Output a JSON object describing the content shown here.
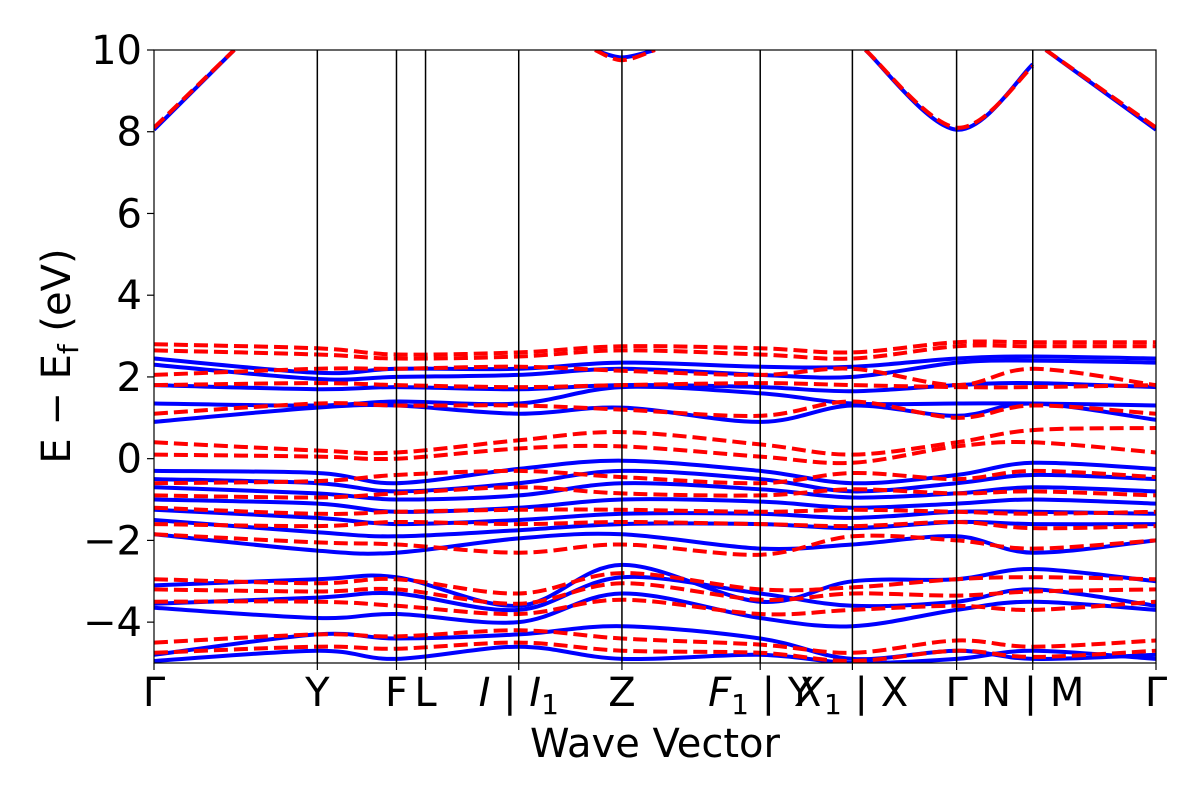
{
  "chart_data": {
    "type": "line",
    "title": "",
    "xlabel": "Wave Vector",
    "ylabel": "E − E",
    "ylabel_sub": "f",
    "ylabel_unit": " (eV)",
    "ylim": [
      -5,
      10
    ],
    "yticks": [
      -4,
      -2,
      0,
      2,
      4,
      6,
      8,
      10
    ],
    "ytick_labels": [
      "−4",
      "−2",
      "0",
      "2",
      "4",
      "6",
      "8",
      "10"
    ],
    "k_path": [
      {
        "label": "Γ",
        "sub": "",
        "k": 0.0
      },
      {
        "label": "Y",
        "sub": "",
        "k": 0.163
      },
      {
        "label": "F",
        "sub": "",
        "k": 0.242
      },
      {
        "label": "L",
        "sub": "",
        "k": 0.271
      },
      {
        "label": "I | I",
        "sub": "1",
        "k": 0.364
      },
      {
        "label": "Z",
        "sub": "",
        "k": 0.467
      },
      {
        "label": "F",
        "sub": "1",
        "label_after": " | Y",
        "k": 0.605
      },
      {
        "label": "X",
        "sub": "1",
        "label_after": " | X",
        "k": 0.697
      },
      {
        "label": "Γ",
        "sub": "",
        "k": 0.801
      },
      {
        "label": "N | M",
        "sub": "",
        "k": 0.877
      },
      {
        "label": "Γ",
        "sub": "",
        "k": 1.0
      }
    ],
    "series": [
      {
        "name": "bands-blue",
        "color": "#0000ff",
        "style": "solid",
        "bands": [
          {
            "k": [
              0,
              0.08
            ],
            "E": [
              8.05,
              10.0
            ]
          },
          {
            "k": [
              0.44,
              0.467,
              0.5
            ],
            "E": [
              10.0,
              9.82,
              10.0
            ]
          },
          {
            "k": [
              0.71,
              0.801,
              0.877
            ],
            "E": [
              10.0,
              8.05,
              9.65
            ]
          },
          {
            "k": [
              0.89,
              1.0
            ],
            "E": [
              10.0,
              8.05
            ]
          },
          {
            "k": [
              0,
              0.163,
              0.242,
              0.364,
              0.467,
              0.605,
              0.697,
              0.801,
              0.877,
              1.0
            ],
            "E": [
              2.45,
              2.1,
              2.2,
              2.2,
              2.35,
              2.25,
              2.25,
              2.45,
              2.5,
              2.45
            ]
          },
          {
            "k": [
              0,
              0.163,
              0.242,
              0.364,
              0.467,
              0.605,
              0.697,
              0.801,
              0.877,
              1.0
            ],
            "E": [
              2.3,
              1.95,
              2.0,
              2.05,
              2.2,
              2.05,
              2.0,
              2.35,
              2.4,
              2.35
            ]
          },
          {
            "k": [
              0,
              0.163,
              0.242,
              0.364,
              0.467,
              0.605,
              0.697,
              0.801,
              0.877,
              1.0
            ],
            "E": [
              1.8,
              1.7,
              1.75,
              1.7,
              1.8,
              1.75,
              1.65,
              1.8,
              1.85,
              1.75
            ]
          },
          {
            "k": [
              0,
              0.163,
              0.242,
              0.364,
              0.467,
              0.605,
              0.697,
              0.801,
              0.877,
              1.0
            ],
            "E": [
              1.35,
              1.3,
              1.4,
              1.35,
              1.75,
              1.6,
              1.35,
              1.35,
              1.35,
              1.3
            ]
          },
          {
            "k": [
              0,
              0.163,
              0.242,
              0.364,
              0.467,
              0.605,
              0.697,
              0.801,
              0.877,
              1.0
            ],
            "E": [
              0.9,
              1.25,
              1.3,
              1.1,
              1.25,
              0.9,
              1.3,
              1.05,
              1.35,
              0.95
            ]
          },
          {
            "k": [
              0,
              0.163,
              0.242,
              0.364,
              0.467,
              0.605,
              0.697,
              0.801,
              0.877,
              1.0
            ],
            "E": [
              -0.3,
              -0.35,
              -0.6,
              -0.25,
              -0.05,
              -0.3,
              -0.6,
              -0.4,
              -0.1,
              -0.25
            ]
          },
          {
            "k": [
              0,
              0.163,
              0.242,
              0.364,
              0.467,
              0.605,
              0.697,
              0.801,
              0.877,
              1.0
            ],
            "E": [
              -0.5,
              -0.6,
              -0.8,
              -0.6,
              -0.3,
              -0.5,
              -0.8,
              -0.6,
              -0.4,
              -0.5
            ]
          },
          {
            "k": [
              0,
              0.163,
              0.242,
              0.364,
              0.467,
              0.605,
              0.697,
              0.801,
              0.877,
              1.0
            ],
            "E": [
              -0.7,
              -0.85,
              -1.0,
              -0.9,
              -0.6,
              -0.75,
              -0.95,
              -0.85,
              -0.7,
              -0.8
            ]
          },
          {
            "k": [
              0,
              0.163,
              0.242,
              0.364,
              0.467,
              0.605,
              0.697,
              0.801,
              0.877,
              1.0
            ],
            "E": [
              -1.0,
              -1.1,
              -1.3,
              -1.2,
              -1.0,
              -1.05,
              -1.2,
              -1.1,
              -1.0,
              -1.1
            ]
          },
          {
            "k": [
              0,
              0.163,
              0.242,
              0.364,
              0.467,
              0.605,
              0.697,
              0.801,
              0.877,
              1.0
            ],
            "E": [
              -1.25,
              -1.45,
              -1.6,
              -1.5,
              -1.35,
              -1.35,
              -1.45,
              -1.3,
              -1.3,
              -1.35
            ]
          },
          {
            "k": [
              0,
              0.163,
              0.242,
              0.364,
              0.467,
              0.605,
              0.697,
              0.801,
              0.877,
              1.0
            ],
            "E": [
              -1.5,
              -1.8,
              -1.9,
              -1.75,
              -1.6,
              -1.6,
              -1.7,
              -1.55,
              -1.6,
              -1.6
            ]
          },
          {
            "k": [
              0,
              0.163,
              0.242,
              0.364,
              0.467,
              0.605,
              0.697,
              0.801,
              0.877,
              1.0
            ],
            "E": [
              -1.85,
              -2.25,
              -2.3,
              -1.95,
              -1.85,
              -2.2,
              -2.1,
              -1.9,
              -2.3,
              -2.0
            ]
          },
          {
            "k": [
              0,
              0.163,
              0.242,
              0.364,
              0.467,
              0.605,
              0.697,
              0.801,
              0.877,
              1.0
            ],
            "E": [
              -3.1,
              -2.95,
              -2.9,
              -3.6,
              -2.6,
              -3.5,
              -3.0,
              -2.95,
              -2.7,
              -3.0
            ]
          },
          {
            "k": [
              0,
              0.163,
              0.242,
              0.364,
              0.467,
              0.605,
              0.697,
              0.801,
              0.877,
              1.0
            ],
            "E": [
              -3.55,
              -3.4,
              -3.3,
              -3.7,
              -2.9,
              -3.3,
              -3.6,
              -3.5,
              -3.2,
              -3.6
            ]
          },
          {
            "k": [
              0,
              0.163,
              0.242,
              0.364,
              0.467,
              0.605,
              0.697,
              0.801,
              0.877,
              1.0
            ],
            "E": [
              -3.65,
              -3.9,
              -3.8,
              -4.0,
              -3.3,
              -3.9,
              -4.1,
              -3.7,
              -3.5,
              -3.7
            ]
          },
          {
            "k": [
              0,
              0.163,
              0.242,
              0.364,
              0.467,
              0.605,
              0.697,
              0.801,
              0.877,
              1.0
            ],
            "E": [
              -4.8,
              -4.3,
              -4.4,
              -4.3,
              -4.1,
              -4.4,
              -4.9,
              -4.7,
              -4.9,
              -4.8
            ]
          },
          {
            "k": [
              0,
              0.163,
              0.242,
              0.364,
              0.467,
              0.605,
              0.697,
              0.801,
              0.877,
              1.0
            ],
            "E": [
              -4.95,
              -4.7,
              -4.9,
              -4.6,
              -4.9,
              -4.8,
              -5.0,
              -4.9,
              -4.7,
              -4.9
            ]
          }
        ]
      },
      {
        "name": "bands-red",
        "color": "#ff0000",
        "style": "dashed",
        "bands": [
          {
            "k": [
              0,
              0.08
            ],
            "E": [
              8.1,
              10.0
            ]
          },
          {
            "k": [
              0.44,
              0.467,
              0.5
            ],
            "E": [
              10.0,
              9.75,
              10.0
            ]
          },
          {
            "k": [
              0.71,
              0.801,
              0.877
            ],
            "E": [
              10.0,
              8.1,
              9.6
            ]
          },
          {
            "k": [
              0.89,
              1.0
            ],
            "E": [
              10.0,
              8.1
            ]
          },
          {
            "k": [
              0,
              0.163,
              0.242,
              0.364,
              0.467,
              0.605,
              0.697,
              0.801,
              0.877,
              1.0
            ],
            "E": [
              2.8,
              2.7,
              2.55,
              2.6,
              2.75,
              2.7,
              2.6,
              2.85,
              2.85,
              2.85
            ]
          },
          {
            "k": [
              0,
              0.163,
              0.242,
              0.364,
              0.467,
              0.605,
              0.697,
              0.801,
              0.877,
              1.0
            ],
            "E": [
              2.65,
              2.55,
              2.45,
              2.5,
              2.65,
              2.55,
              2.45,
              2.75,
              2.75,
              2.75
            ]
          },
          {
            "k": [
              0,
              0.163,
              0.242,
              0.364,
              0.467,
              0.605,
              0.697,
              0.801,
              0.877,
              1.0
            ],
            "E": [
              2.05,
              2.2,
              2.2,
              2.25,
              2.15,
              2.05,
              2.2,
              1.8,
              2.2,
              1.8
            ]
          },
          {
            "k": [
              0,
              0.163,
              0.242,
              0.364,
              0.467,
              0.605,
              0.697,
              0.801,
              0.877,
              1.0
            ],
            "E": [
              1.8,
              1.85,
              1.8,
              1.75,
              1.8,
              1.85,
              1.8,
              1.75,
              1.75,
              1.8
            ]
          },
          {
            "k": [
              0,
              0.163,
              0.242,
              0.364,
              0.467,
              0.605,
              0.697,
              0.801,
              0.877,
              1.0
            ],
            "E": [
              1.1,
              1.35,
              1.3,
              1.3,
              1.2,
              1.05,
              1.4,
              1.0,
              1.3,
              1.1
            ]
          },
          {
            "k": [
              0,
              0.163,
              0.242,
              0.364,
              0.467,
              0.605,
              0.697,
              0.801,
              0.877,
              1.0
            ],
            "E": [
              0.4,
              0.2,
              0.15,
              0.45,
              0.65,
              0.35,
              0.1,
              0.4,
              0.7,
              0.75
            ]
          },
          {
            "k": [
              0,
              0.163,
              0.242,
              0.364,
              0.467,
              0.605,
              0.697,
              0.801,
              0.877,
              1.0
            ],
            "E": [
              0.1,
              0.05,
              0.0,
              0.25,
              0.3,
              0.05,
              -0.1,
              0.3,
              0.4,
              0.15
            ]
          },
          {
            "k": [
              0,
              0.163,
              0.242,
              0.364,
              0.467,
              0.605,
              0.697,
              0.801,
              0.877,
              1.0
            ],
            "E": [
              -0.6,
              -0.55,
              -0.4,
              -0.3,
              -0.45,
              -0.6,
              -0.35,
              -0.5,
              -0.3,
              -0.45
            ]
          },
          {
            "k": [
              0,
              0.163,
              0.242,
              0.364,
              0.467,
              0.605,
              0.697,
              0.801,
              0.877,
              1.0
            ],
            "E": [
              -0.9,
              -0.95,
              -0.85,
              -0.7,
              -0.85,
              -0.9,
              -0.75,
              -0.85,
              -0.8,
              -0.9
            ]
          },
          {
            "k": [
              0,
              0.163,
              0.242,
              0.364,
              0.467,
              0.605,
              0.697,
              0.801,
              0.877,
              1.0
            ],
            "E": [
              -1.2,
              -1.35,
              -1.3,
              -1.25,
              -1.25,
              -1.3,
              -1.25,
              -1.3,
              -1.35,
              -1.3
            ]
          },
          {
            "k": [
              0,
              0.163,
              0.242,
              0.364,
              0.467,
              0.605,
              0.697,
              0.801,
              0.877,
              1.0
            ],
            "E": [
              -1.6,
              -1.65,
              -1.55,
              -1.6,
              -1.55,
              -1.6,
              -1.65,
              -1.55,
              -1.7,
              -1.65
            ]
          },
          {
            "k": [
              0,
              0.163,
              0.242,
              0.364,
              0.467,
              0.605,
              0.697,
              0.801,
              0.877,
              1.0
            ],
            "E": [
              -1.85,
              -2.05,
              -2.1,
              -2.3,
              -2.1,
              -2.35,
              -1.9,
              -2.0,
              -2.2,
              -2.0
            ]
          },
          {
            "k": [
              0,
              0.163,
              0.242,
              0.364,
              0.467,
              0.605,
              0.697,
              0.801,
              0.877,
              1.0
            ],
            "E": [
              -2.95,
              -3.05,
              -2.95,
              -3.3,
              -2.8,
              -3.2,
              -3.15,
              -2.95,
              -2.9,
              -2.95
            ]
          },
          {
            "k": [
              0,
              0.163,
              0.242,
              0.364,
              0.467,
              0.605,
              0.697,
              0.801,
              0.877,
              1.0
            ],
            "E": [
              -3.2,
              -3.25,
              -3.2,
              -3.55,
              -3.05,
              -3.45,
              -3.3,
              -3.35,
              -3.25,
              -3.2
            ]
          },
          {
            "k": [
              0,
              0.163,
              0.242,
              0.364,
              0.467,
              0.605,
              0.697,
              0.801,
              0.877,
              1.0
            ],
            "E": [
              -3.5,
              -3.5,
              -3.6,
              -3.8,
              -3.45,
              -3.8,
              -3.7,
              -3.6,
              -3.7,
              -3.5
            ]
          },
          {
            "k": [
              0,
              0.163,
              0.242,
              0.364,
              0.467,
              0.605,
              0.697,
              0.801,
              0.877,
              1.0
            ],
            "E": [
              -4.5,
              -4.3,
              -4.35,
              -4.2,
              -4.4,
              -4.55,
              -4.75,
              -4.45,
              -4.6,
              -4.45
            ]
          },
          {
            "k": [
              0,
              0.163,
              0.242,
              0.364,
              0.467,
              0.605,
              0.697,
              0.801,
              0.877,
              1.0
            ],
            "E": [
              -4.75,
              -4.6,
              -4.65,
              -4.5,
              -4.7,
              -4.75,
              -4.95,
              -4.7,
              -4.85,
              -4.7
            ]
          }
        ]
      }
    ]
  }
}
